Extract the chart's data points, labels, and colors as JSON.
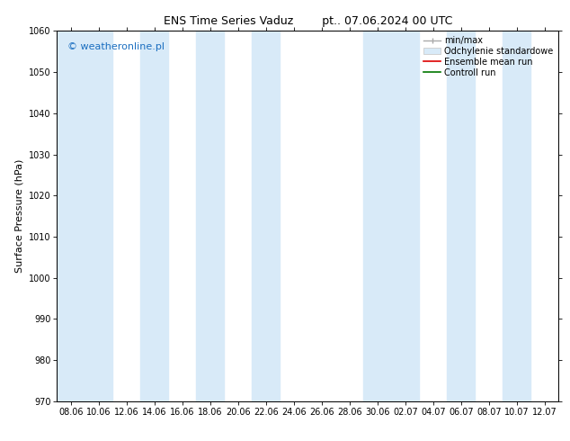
{
  "title": "ENS Time Series Vaduz",
  "title_right": "pt.. 07.06.2024 00 UTC",
  "ylabel": "Surface Pressure (hPa)",
  "ylim": [
    970,
    1060
  ],
  "yticks": [
    970,
    980,
    990,
    1000,
    1010,
    1020,
    1030,
    1040,
    1050,
    1060
  ],
  "xtick_labels": [
    "08.06",
    "10.06",
    "12.06",
    "14.06",
    "16.06",
    "18.06",
    "20.06",
    "22.06",
    "24.06",
    "26.06",
    "28.06",
    "30.06",
    "02.07",
    "04.07",
    "06.07",
    "08.07",
    "10.07",
    "12.07"
  ],
  "watermark": "© weatheronline.pl",
  "watermark_color": "#1a6ec0",
  "background_color": "#ffffff",
  "plot_bg_color": "#ffffff",
  "band_color": "#d8eaf8",
  "band_positions": [
    0,
    1,
    3,
    5,
    7,
    11,
    12,
    14,
    16
  ],
  "legend_labels": [
    "min/max",
    "Odchylenie standardowe",
    "Ensemble mean run",
    "Controll run"
  ],
  "title_fontsize": 9,
  "tick_fontsize": 7,
  "ylabel_fontsize": 8,
  "watermark_fontsize": 8,
  "legend_fontsize": 7
}
